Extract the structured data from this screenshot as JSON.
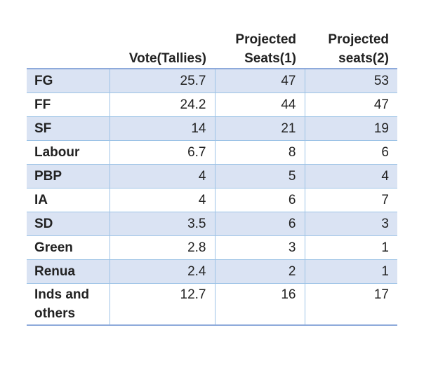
{
  "table": {
    "headers": {
      "party": "",
      "vote": "Vote(Tallies)",
      "proj1_line1": "Projected",
      "proj1_line2": "Seats(1)",
      "proj2_line1": "Projected",
      "proj2_line2": "seats(2)"
    },
    "rows": [
      {
        "party": "FG",
        "vote": "25.7",
        "proj1": "47",
        "proj2": "53"
      },
      {
        "party": "FF",
        "vote": "24.2",
        "proj1": "44",
        "proj2": "47"
      },
      {
        "party": "SF",
        "vote": "14",
        "proj1": "21",
        "proj2": "19"
      },
      {
        "party": "Labour",
        "vote": "6.7",
        "proj1": "8",
        "proj2": "6"
      },
      {
        "party": "PBP",
        "vote": "4",
        "proj1": "5",
        "proj2": "4"
      },
      {
        "party": "IA",
        "vote": "4",
        "proj1": "6",
        "proj2": "7"
      },
      {
        "party": "SD",
        "vote": "3.5",
        "proj1": "6",
        "proj2": "3"
      },
      {
        "party": "Green",
        "vote": "2.8",
        "proj1": "3",
        "proj2": "1"
      },
      {
        "party": "Renua",
        "vote": "2.4",
        "proj1": "2",
        "proj2": "1"
      },
      {
        "party": "Inds and others",
        "vote": "12.7",
        "proj1": "16",
        "proj2": "17"
      }
    ]
  },
  "colors": {
    "shaded_row": "#dae3f3",
    "border": "#9dc3e6"
  }
}
